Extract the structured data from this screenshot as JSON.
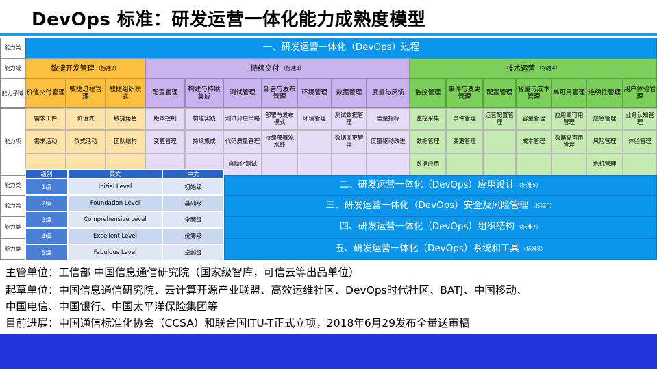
{
  "title": "DevOps 标准：研发运营一体化能力成熟度模型",
  "labels": {
    "category": "能力类",
    "domain": "能力域",
    "subdomain": "能力子域",
    "item": "能力项"
  },
  "main_header": {
    "text": "一、研发运营一体化（DevOps）过程"
  },
  "domains": [
    {
      "name": "敏捷开发管理",
      "tag": "（标准2）"
    },
    {
      "name": "持续交付",
      "tag": "（标准3）"
    },
    {
      "name": "技术运营",
      "tag": "（标准4）"
    }
  ],
  "subdomains": [
    "价值交付管理",
    "敏捷过程管理",
    "敏捷组织模式",
    "配置管理",
    "构建与持续集成",
    "测试管理",
    "部署与发布管理",
    "环境管理",
    "数据管理",
    "度量与反馈",
    "监控管理",
    "事件与变更管理",
    "配置管理",
    "容量与成本管理",
    "高可用管理",
    "连续性管理",
    "用户体验管理"
  ],
  "items": {
    "row1": [
      "需求工件",
      "价值流",
      "敏捷角色",
      "版本控制",
      "构建实践",
      "测试分层策略",
      "部署与发布模式",
      "环境管理",
      "测试数据管理",
      "度量指标",
      "监控采集",
      "事件管理",
      "运营配置管理",
      "容量管理",
      "应用高可用管理",
      "应急管理",
      "业务认知管理"
    ],
    "row2": [
      "需求活动",
      "仪式活动",
      "团队结构",
      "变更管理",
      "持续集成",
      "代码质量管理",
      "持续部署流水线",
      "",
      "数据变更管理",
      "度量驱动改进",
      "数据管理",
      "变更管理",
      "",
      "成本管理",
      "数据高可用管理",
      "风险管理",
      "体验管理"
    ],
    "row3": [
      "",
      "",
      "",
      "",
      "",
      "自动化测试",
      "",
      "",
      "",
      "",
      "数据应用",
      "",
      "",
      "",
      "",
      "危机管理",
      ""
    ]
  },
  "bottom_categories": [
    {
      "text": "二、研发运营一体化（DevOps）应用设计",
      "tag": "（标准5）"
    },
    {
      "text": "三、研发运营一体化（DevOps）安全及风险管理",
      "tag": "（标准6）"
    },
    {
      "text": "四、研发运营一体化（DevOps）组织结构",
      "tag": "（标准7）"
    },
    {
      "text": "五、研发运营一体化（DevOps）系统和工具",
      "tag": "（标准8）"
    }
  ],
  "levels": {
    "headers": [
      "级别",
      "英文",
      "中文"
    ],
    "rows": [
      {
        "level": "1级",
        "en": "Initial Level",
        "zh": "初始级"
      },
      {
        "level": "2级",
        "en": "Foundation Level",
        "zh": "基础级"
      },
      {
        "level": "3级",
        "en": "Comprehensive Level",
        "zh": "全面级"
      },
      {
        "level": "4级",
        "en": "Excellent Level",
        "zh": "优秀级"
      },
      {
        "level": "5级",
        "en": "Fabulous Level",
        "zh": "卓越级"
      }
    ]
  },
  "info": {
    "line1": "主管单位：工信部 中国信息通信研究院（国家级智库，可信云等出品单位）",
    "line2": "起草单位：中国信息通信研究院、云计算开源产业联盟、高效运维社区、DevOps时代社区、BATJ、中国移动、",
    "line3": "中国电信、中国银行、中国太平洋保险集团等",
    "line4": "目前进展：中国通信标准化协会（CCSA）和联合国ITU-T正式立项，2018年6月29发布全量送审稿"
  }
}
